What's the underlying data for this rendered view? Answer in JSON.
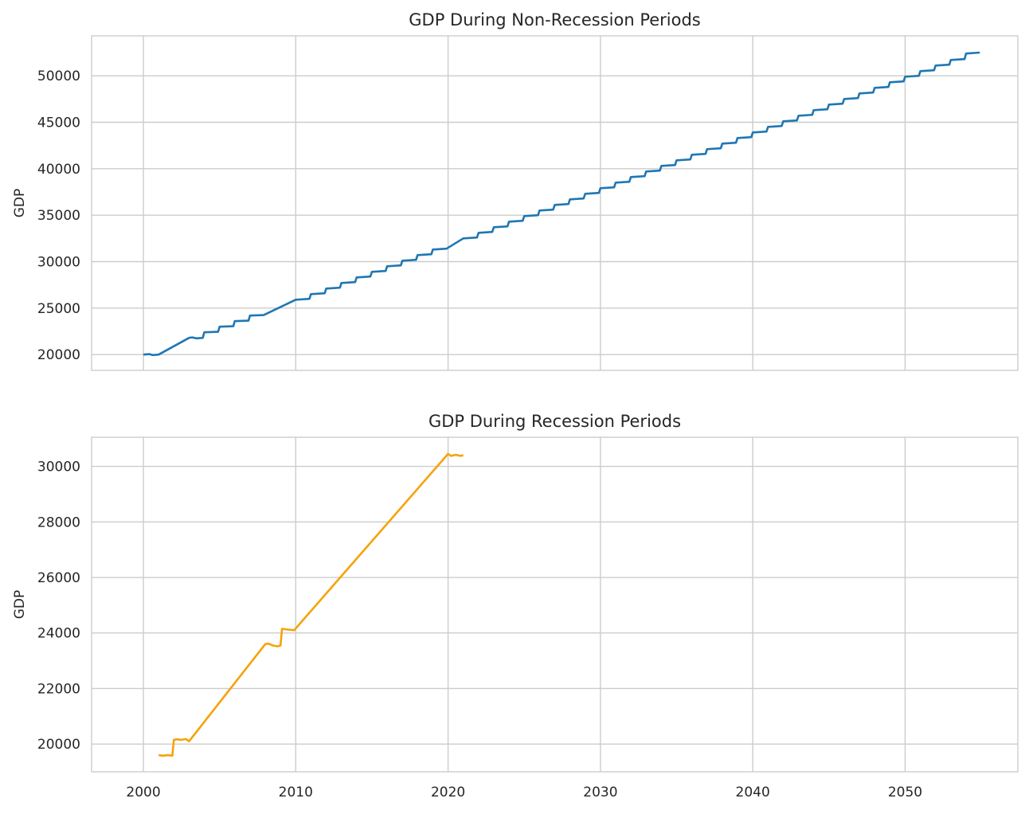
{
  "chart_data": [
    {
      "type": "line",
      "title": "GDP During Non-Recession Periods",
      "ylabel": "GDP",
      "xlabel": "",
      "xlim": [
        1996.6,
        2057.4
      ],
      "ylim": [
        18300,
        54300
      ],
      "xticks": [
        2000,
        2010,
        2020,
        2030,
        2040,
        2050
      ],
      "xtick_labels": [
        "",
        "",
        "",
        "",
        "",
        ""
      ],
      "yticks": [
        20000,
        25000,
        30000,
        35000,
        40000,
        45000,
        50000
      ],
      "ytick_labels": [
        "20000",
        "25000",
        "30000",
        "35000",
        "40000",
        "45000",
        "50000"
      ],
      "grid": true,
      "series": [
        {
          "color": "#1f77b4",
          "x": [
            2000.0,
            2000.4,
            2000.6,
            2001.0,
            2003.0,
            2003.2,
            2003.5,
            2003.9,
            2004.0,
            2004.9,
            2005.0,
            2005.9,
            2006.0,
            2006.9,
            2007.0,
            2007.9,
            2010.0,
            2010.9,
            2011.0,
            2011.9,
            2012.0,
            2012.9,
            2013.0,
            2013.9,
            2014.0,
            2014.9,
            2015.0,
            2015.9,
            2016.0,
            2016.9,
            2017.0,
            2017.9,
            2018.0,
            2018.9,
            2019.0,
            2019.9,
            2021.0,
            2021.9,
            2022.0,
            2022.9,
            2023.0,
            2023.9,
            2024.0,
            2024.9,
            2025.0,
            2025.9,
            2026.0,
            2026.9,
            2027.0,
            2027.9,
            2028.0,
            2028.9,
            2029.0,
            2029.9,
            2030.0,
            2030.9,
            2031.0,
            2031.9,
            2032.0,
            2032.9,
            2033.0,
            2033.9,
            2034.0,
            2034.9,
            2035.0,
            2035.9,
            2036.0,
            2036.9,
            2037.0,
            2037.9,
            2038.0,
            2038.9,
            2039.0,
            2039.9,
            2040.0,
            2040.9,
            2041.0,
            2041.9,
            2042.0,
            2042.9,
            2043.0,
            2043.9,
            2044.0,
            2044.9,
            2045.0,
            2045.9,
            2046.0,
            2046.9,
            2047.0,
            2047.9,
            2048.0,
            2048.9,
            2049.0,
            2049.9,
            2050.0,
            2050.9,
            2051.0,
            2051.9,
            2052.0,
            2052.9,
            2053.0,
            2053.9,
            2054.0,
            2054.9
          ],
          "y": [
            20000,
            20050,
            19950,
            20000,
            21800,
            21850,
            21750,
            21800,
            22400,
            22450,
            23000,
            23050,
            23600,
            23650,
            24200,
            24250,
            25900,
            26000,
            26500,
            26600,
            27100,
            27200,
            27700,
            27800,
            28300,
            28400,
            28900,
            29000,
            29500,
            29600,
            30100,
            30200,
            30700,
            30800,
            31300,
            31400,
            32500,
            32600,
            33100,
            33200,
            33700,
            33800,
            34300,
            34400,
            34900,
            35000,
            35500,
            35600,
            36100,
            36200,
            36700,
            36800,
            37300,
            37400,
            37900,
            38000,
            38500,
            38600,
            39100,
            39200,
            39700,
            39800,
            40300,
            40400,
            40900,
            41000,
            41500,
            41600,
            42100,
            42200,
            42700,
            42800,
            43300,
            43400,
            43900,
            44000,
            44500,
            44600,
            45100,
            45200,
            45700,
            45800,
            46300,
            46400,
            46900,
            47000,
            47500,
            47600,
            48100,
            48200,
            48700,
            48800,
            49300,
            49400,
            49900,
            50000,
            50500,
            50600,
            51100,
            51200,
            51700,
            51800,
            52400,
            52500
          ]
        }
      ]
    },
    {
      "type": "line",
      "title": "GDP During Recession Periods",
      "ylabel": "GDP",
      "xlabel": "",
      "xlim": [
        1996.6,
        2057.4
      ],
      "ylim": [
        19000,
        31050
      ],
      "xticks": [
        2000,
        2010,
        2020,
        2030,
        2040,
        2050
      ],
      "xtick_labels": [
        "2000",
        "2010",
        "2020",
        "2030",
        "2040",
        "2050"
      ],
      "yticks": [
        20000,
        22000,
        24000,
        26000,
        28000,
        30000
      ],
      "ytick_labels": [
        "20000",
        "22000",
        "24000",
        "26000",
        "28000",
        "30000"
      ],
      "grid": true,
      "series": [
        {
          "color": "#f5a30a",
          "x": [
            2001.0,
            2001.3,
            2001.6,
            2001.9,
            2002.0,
            2002.2,
            2002.5,
            2002.8,
            2003.0,
            2008.0,
            2008.2,
            2008.5,
            2008.8,
            2009.0,
            2009.1,
            2009.5,
            2009.9,
            2020.0,
            2020.2,
            2020.5,
            2020.8,
            2021.0
          ],
          "y": [
            19600,
            19580,
            19600,
            19580,
            20150,
            20170,
            20150,
            20180,
            20100,
            23600,
            23620,
            23550,
            23520,
            23550,
            24150,
            24120,
            24100,
            30450,
            30380,
            30420,
            30380,
            30400
          ]
        }
      ]
    }
  ]
}
